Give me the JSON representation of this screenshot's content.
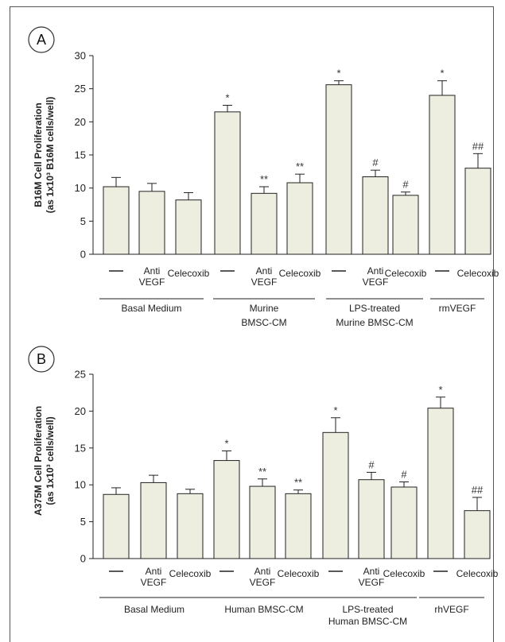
{
  "colors": {
    "bar_fill": "#eeeee0",
    "stroke": "#222222",
    "background": "#ffffff"
  },
  "chart_data": [
    {
      "type": "bar",
      "panel_label": "A",
      "ylabel_line1": "B16M Cell Proliferation",
      "ylabel_line2": "(as 1x10³ B16M cells/well)",
      "ylim": [
        0,
        30
      ],
      "yticks": [
        "0",
        "5",
        "10",
        "15",
        "20",
        "25",
        "30"
      ],
      "bars": [
        {
          "label_top": "—",
          "label_bottom": "",
          "value": 10.2,
          "err": 1.4,
          "sig": ""
        },
        {
          "label_top": "Anti",
          "label_bottom": "VEGF",
          "value": 9.5,
          "err": 1.2,
          "sig": ""
        },
        {
          "label_top": "Celecoxib",
          "label_bottom": "",
          "value": 8.2,
          "err": 1.1,
          "sig": ""
        },
        {
          "label_top": "—",
          "label_bottom": "",
          "value": 21.5,
          "err": 1.0,
          "sig": "*"
        },
        {
          "label_top": "Anti",
          "label_bottom": "VEGF",
          "value": 9.2,
          "err": 1.0,
          "sig": "**"
        },
        {
          "label_top": "Celecoxib",
          "label_bottom": "",
          "value": 10.8,
          "err": 1.3,
          "sig": "**"
        },
        {
          "label_top": "—",
          "label_bottom": "",
          "value": 25.6,
          "err": 0.6,
          "sig": "*"
        },
        {
          "label_top": "Anti",
          "label_bottom": "VEGF",
          "value": 11.7,
          "err": 1.0,
          "sig": "#"
        },
        {
          "label_top": "Celecoxib",
          "label_bottom": "",
          "value": 8.9,
          "err": 0.5,
          "sig": "#"
        },
        {
          "label_top": "—",
          "label_bottom": "",
          "value": 24.0,
          "err": 2.2,
          "sig": "*"
        },
        {
          "label_top": "Celecoxib",
          "label_bottom": "",
          "value": 13.0,
          "err": 2.2,
          "sig": "##"
        }
      ],
      "groups": [
        {
          "name_line1": "Basal Medium",
          "name_line2": ""
        },
        {
          "name_line1": "Murine",
          "name_line2": "BMSC-CM"
        },
        {
          "name_line1": "LPS-treated",
          "name_line2": "Murine BMSC-CM"
        },
        {
          "name_line1": "rmVEGF",
          "name_line2": ""
        }
      ]
    },
    {
      "type": "bar",
      "panel_label": "B",
      "ylabel_line1": "A375M Cell Proliferation",
      "ylabel_line2": "(as 1x10³ cells/well)",
      "ylim": [
        0,
        25
      ],
      "yticks": [
        "0",
        "5",
        "10",
        "15",
        "20",
        "25"
      ],
      "bars": [
        {
          "label_top": "—",
          "label_bottom": "",
          "value": 8.7,
          "err": 0.9,
          "sig": ""
        },
        {
          "label_top": "Anti",
          "label_bottom": "VEGF",
          "value": 10.3,
          "err": 1.0,
          "sig": ""
        },
        {
          "label_top": "Celecoxib",
          "label_bottom": "",
          "value": 8.8,
          "err": 0.6,
          "sig": ""
        },
        {
          "label_top": "—",
          "label_bottom": "",
          "value": 13.3,
          "err": 1.3,
          "sig": "*"
        },
        {
          "label_top": "Anti",
          "label_bottom": "VEGF",
          "value": 9.8,
          "err": 1.0,
          "sig": "**"
        },
        {
          "label_top": "Celecoxib",
          "label_bottom": "",
          "value": 8.8,
          "err": 0.5,
          "sig": "**"
        },
        {
          "label_top": "—",
          "label_bottom": "",
          "value": 17.1,
          "err": 2.0,
          "sig": "*"
        },
        {
          "label_top": "Anti",
          "label_bottom": "VEGF",
          "value": 10.7,
          "err": 1.0,
          "sig": "#"
        },
        {
          "label_top": "Celecoxib",
          "label_bottom": "",
          "value": 9.7,
          "err": 0.7,
          "sig": "#"
        },
        {
          "label_top": "—",
          "label_bottom": "",
          "value": 20.4,
          "err": 1.5,
          "sig": "*"
        },
        {
          "label_top": "Celecoxib",
          "label_bottom": "",
          "value": 6.5,
          "err": 1.8,
          "sig": "##"
        }
      ],
      "groups": [
        {
          "name_line1": "Basal Medium",
          "name_line2": ""
        },
        {
          "name_line1": "Human BMSC-CM",
          "name_line2": ""
        },
        {
          "name_line1": "LPS-treated",
          "name_line2": "Human BMSC-CM"
        },
        {
          "name_line1": "rhVEGF",
          "name_line2": ""
        }
      ]
    }
  ]
}
